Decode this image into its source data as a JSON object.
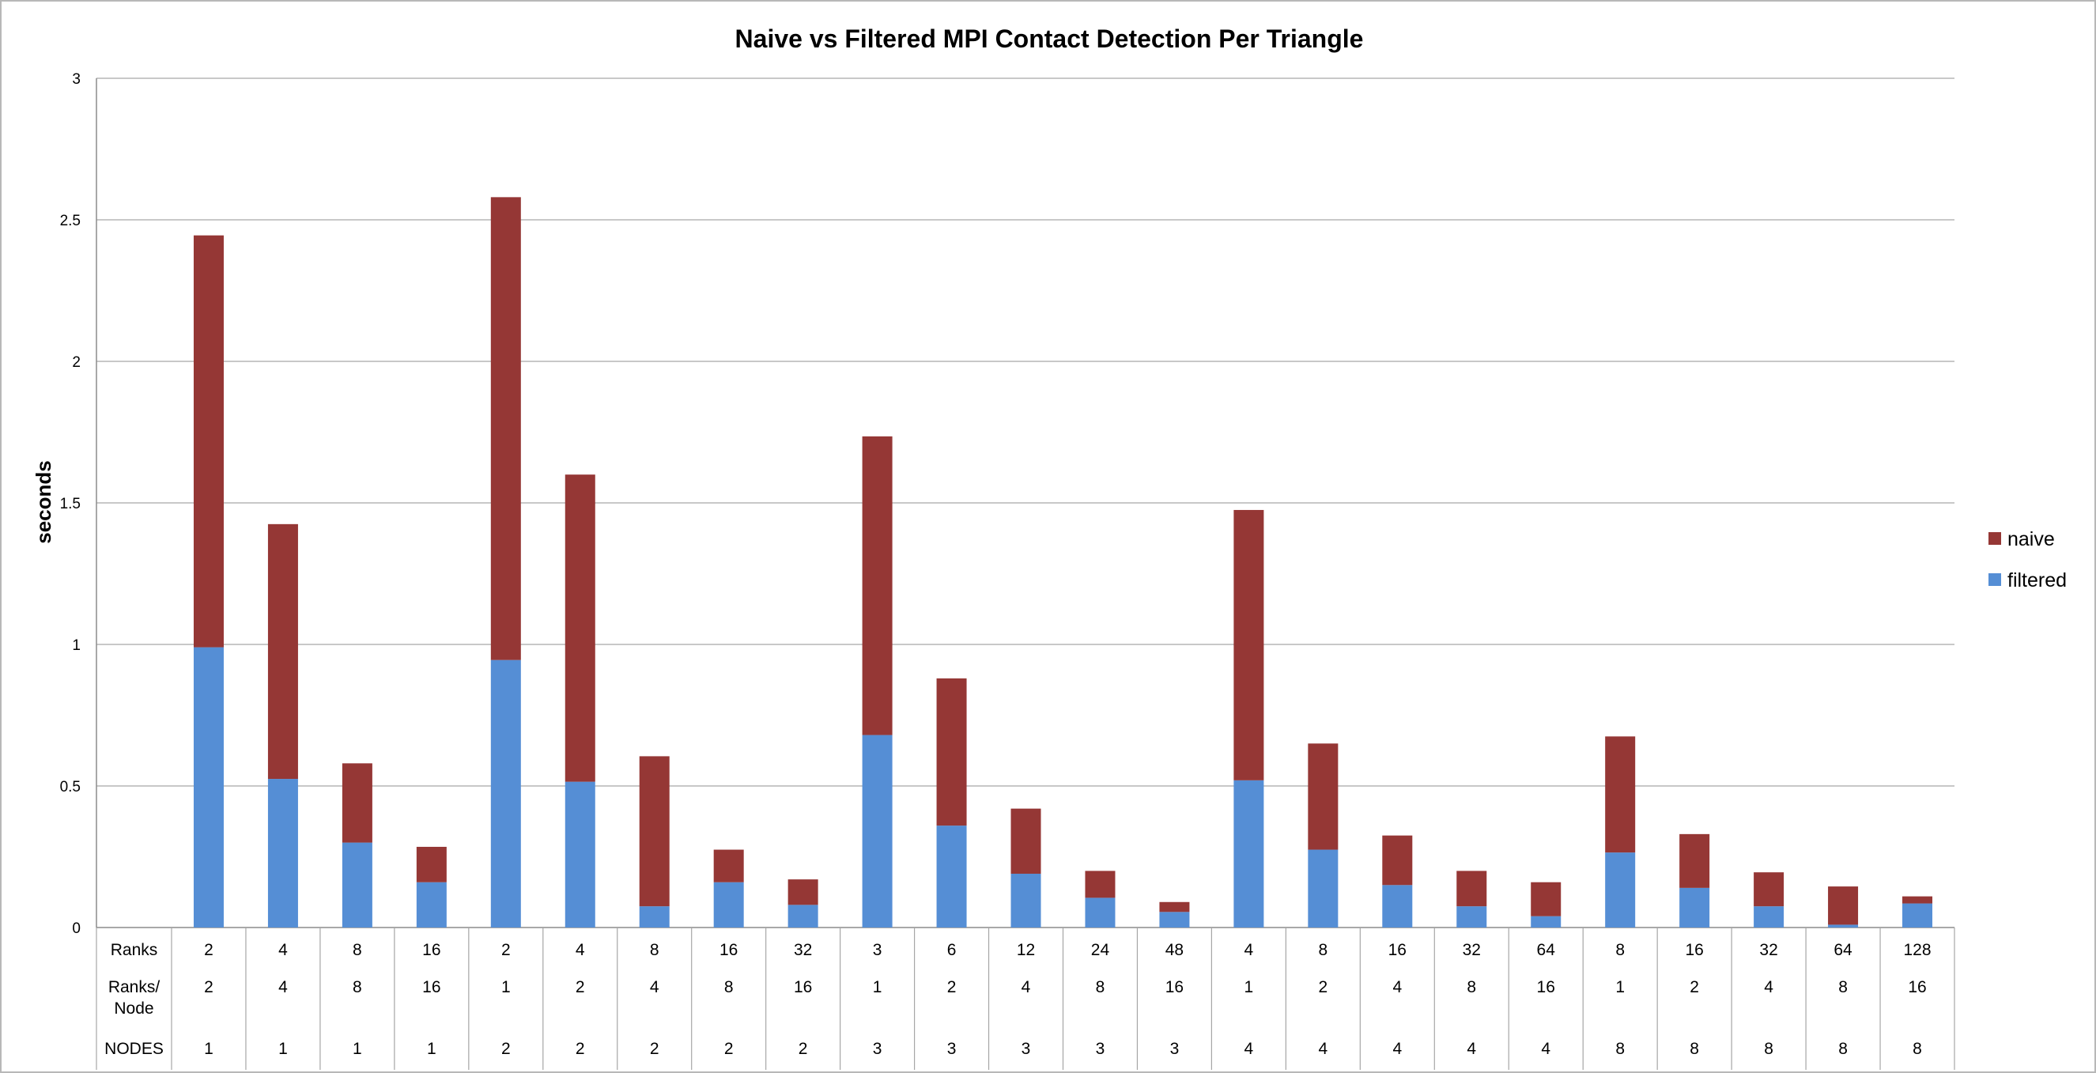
{
  "chart_data": {
    "type": "bar",
    "stacked": true,
    "title": "Naive vs Filtered MPI Contact Detection Per Triangle",
    "ylabel": "seconds",
    "xlabel": "",
    "ylim": [
      0,
      3
    ],
    "yticks": [
      "0",
      "0.5",
      "1",
      "1.5",
      "2",
      "2.5",
      "3"
    ],
    "grid": true,
    "legend_position": "right",
    "categories": [
      "2|2|1",
      "4|4|1",
      "8|8|1",
      "16|16|1",
      "2|1|2",
      "4|2|2",
      "8|4|2",
      "16|8|2",
      "32|16|2",
      "3|1|3",
      "6|2|3",
      "12|4|3",
      "24|8|3",
      "48|16|3",
      "4|1|4",
      "8|2|4",
      "16|4|4",
      "32|8|4",
      "64|16|4",
      "8|1|8",
      "16|2|8",
      "32|4|8",
      "64|8|8",
      "128|16|8"
    ],
    "table_rows": [
      {
        "label": "Ranks",
        "values": [
          "2",
          "4",
          "8",
          "16",
          "2",
          "4",
          "8",
          "16",
          "32",
          "3",
          "6",
          "12",
          "24",
          "48",
          "4",
          "8",
          "16",
          "32",
          "64",
          "8",
          "16",
          "32",
          "64",
          "128"
        ]
      },
      {
        "label": "Ranks/\nNode",
        "values": [
          "2",
          "4",
          "8",
          "16",
          "1",
          "2",
          "4",
          "8",
          "16",
          "1",
          "2",
          "4",
          "8",
          "16",
          "1",
          "2",
          "4",
          "8",
          "16",
          "1",
          "2",
          "4",
          "8",
          "16"
        ]
      },
      {
        "label": "NODES",
        "values": [
          "1",
          "1",
          "1",
          "1",
          "2",
          "2",
          "2",
          "2",
          "2",
          "3",
          "3",
          "3",
          "3",
          "3",
          "4",
          "4",
          "4",
          "4",
          "4",
          "8",
          "8",
          "8",
          "8",
          "8"
        ]
      }
    ],
    "series": [
      {
        "name": "filtered",
        "color": "#558ed5",
        "values": [
          0.99,
          0.525,
          0.3,
          0.16,
          0.945,
          0.515,
          0.075,
          0.16,
          0.08,
          0.68,
          0.36,
          0.19,
          0.105,
          0.055,
          0.52,
          0.275,
          0.15,
          0.075,
          0.04,
          0.265,
          0.14,
          0.075,
          0.01,
          0.085
        ]
      },
      {
        "name": "naive",
        "color": "#953735",
        "values": [
          1.455,
          0.9,
          0.28,
          0.125,
          1.635,
          1.085,
          0.53,
          0.115,
          0.09,
          1.055,
          0.52,
          0.23,
          0.095,
          0.035,
          0.955,
          0.375,
          0.175,
          0.125,
          0.12,
          0.41,
          0.19,
          0.12,
          0.135,
          0.025
        ]
      }
    ],
    "legend": [
      {
        "name": "naive",
        "color": "#953735"
      },
      {
        "name": "filtered",
        "color": "#558ed5"
      }
    ]
  }
}
